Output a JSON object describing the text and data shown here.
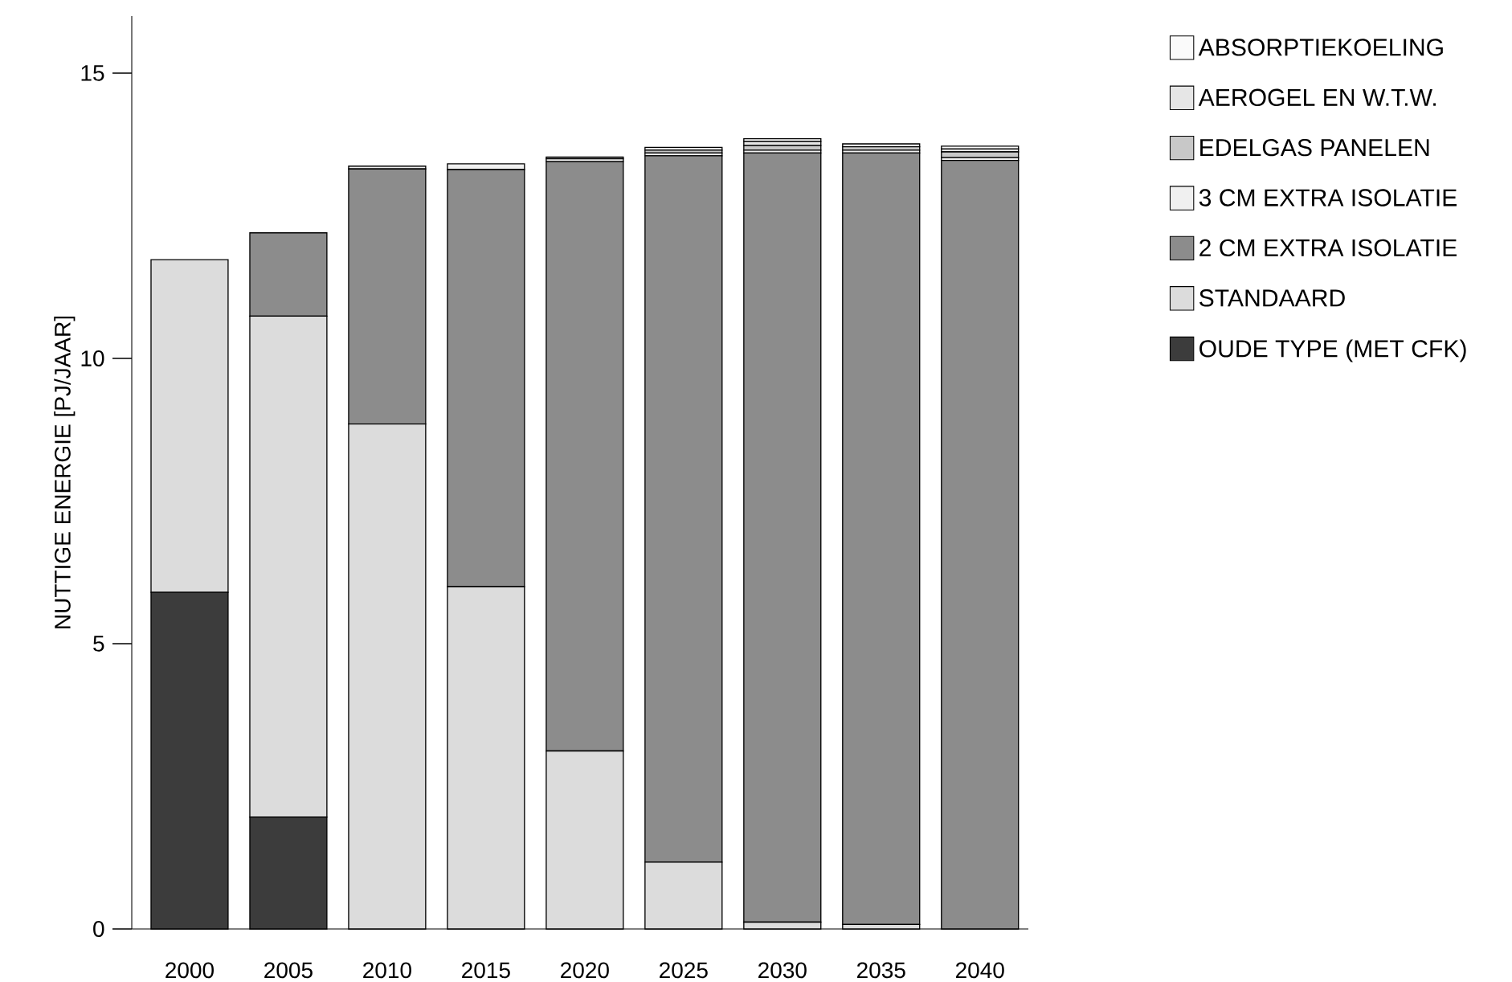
{
  "chart_data": {
    "type": "bar",
    "stacked": true,
    "ylabel": "NUTTIGE ENERGIE [PJ/JAAR]",
    "categories": [
      "2000",
      "2005",
      "2010",
      "2015",
      "2020",
      "2025",
      "2030",
      "2035",
      "2040"
    ],
    "series": [
      {
        "name": "OUDE TYPE (MET CFK)",
        "color": "#3c3c3c",
        "values": [
          5.9,
          1.96,
          0,
          0,
          0,
          0,
          0,
          0,
          0
        ]
      },
      {
        "name": "STANDAARD",
        "color": "#dcdcdc",
        "values": [
          5.83,
          8.78,
          8.85,
          6.0,
          3.12,
          1.17,
          0.12,
          0.08,
          null
        ]
      },
      {
        "name": "2 CM EXTRA ISOLATIE",
        "color": "#8c8c8c",
        "values": [
          0,
          1.46,
          4.47,
          7.31,
          10.33,
          12.38,
          13.48,
          13.52,
          13.47
        ]
      },
      {
        "name": "3 CM EXTRA ISOLATIE",
        "color": "#f0f0f0",
        "values": [
          0,
          0,
          0.05,
          0.1,
          0.05,
          0.05,
          0.05,
          0.05,
          0.05
        ]
      },
      {
        "name": "EDELGAS PANELEN",
        "color": "#c8c8c8",
        "values": [
          0,
          0,
          0,
          null,
          0.03,
          0.05,
          0.08,
          0.06,
          0.1
        ]
      },
      {
        "name": "AEROGEL EN W.T.W.",
        "color": "#e6e6e6",
        "values": [
          0,
          0,
          0,
          0,
          0,
          0.05,
          0.07,
          0.05,
          0.05
        ]
      },
      {
        "name": "ABSORPTIEKOELING",
        "color": "#fafafa",
        "values": [
          0,
          0,
          0,
          0,
          0,
          0,
          0.05,
          null,
          0.05
        ]
      }
    ],
    "ylim": [
      0,
      16
    ],
    "yticks": [
      0,
      5,
      10,
      15
    ],
    "legend": "right"
  }
}
